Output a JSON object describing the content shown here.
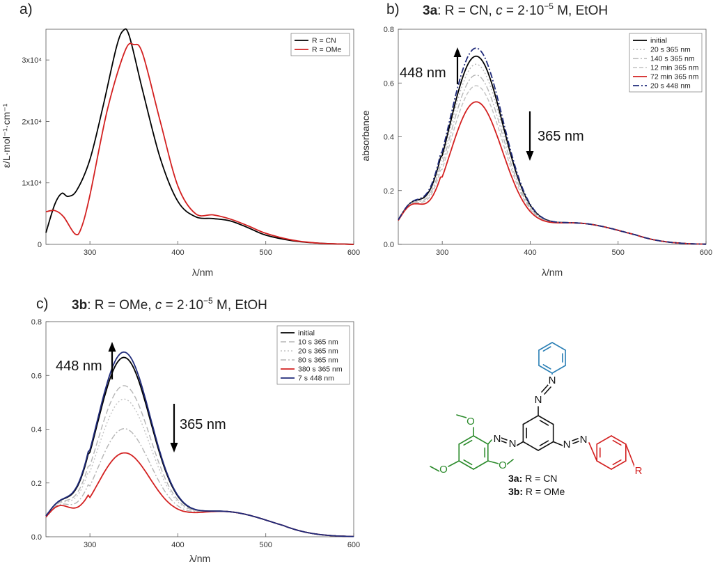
{
  "chart_data": [
    {
      "panel": "a)",
      "type": "line",
      "title": "",
      "xlabel": "λ/nm",
      "ylabel": "ε/L·mol⁻¹·cm⁻¹",
      "xlim": [
        250,
        600
      ],
      "ylim": [
        0,
        35000
      ],
      "xticks": [
        300,
        400,
        500,
        600
      ],
      "yticks": [
        0,
        10000,
        20000,
        30000
      ],
      "ytick_labels": [
        "0",
        "1x10⁴",
        "2x10⁴",
        "3x10⁴"
      ],
      "legend_position": "top-right",
      "series": [
        {
          "name": "R = CN",
          "color": "#000000",
          "dash": "",
          "x": [
            250,
            260,
            268,
            275,
            285,
            300,
            315,
            330,
            338,
            345,
            360,
            380,
            400,
            420,
            440,
            460,
            480,
            500,
            530,
            560,
            600
          ],
          "y": [
            1900,
            6500,
            8300,
            7800,
            8800,
            13800,
            22500,
            32000,
            34800,
            33800,
            25000,
            14000,
            7000,
            4500,
            4200,
            3800,
            2700,
            1500,
            600,
            200,
            0
          ]
        },
        {
          "name": "R = OMe",
          "color": "#d32020",
          "dash": "",
          "x": [
            250,
            260,
            270,
            283,
            290,
            300,
            320,
            340,
            350,
            360,
            380,
            400,
            420,
            440,
            460,
            480,
            500,
            530,
            560,
            600
          ],
          "y": [
            5300,
            5500,
            4500,
            1700,
            2600,
            8000,
            22000,
            31500,
            32500,
            31000,
            20000,
            9500,
            5000,
            4800,
            4100,
            3000,
            1800,
            700,
            200,
            0
          ]
        }
      ]
    },
    {
      "panel": "b)",
      "type": "line",
      "title_bold": "3a",
      "title_rest": ": R = CN, ",
      "title_c": "c",
      "title_conc": " = 2·10",
      "title_exp": "−5",
      "title_end": " M, EtOH",
      "xlabel": "λ/nm",
      "ylabel": "absorbance",
      "xlim": [
        250,
        600
      ],
      "ylim": [
        0,
        0.8
      ],
      "xticks": [
        300,
        400,
        500,
        600
      ],
      "yticks": [
        0,
        0.2,
        0.4,
        0.6,
        0.8
      ],
      "ytick_labels": [
        "0.0",
        "0.2",
        "0.4",
        "0.6",
        "0.8"
      ],
      "legend_position": "top-right",
      "annotations": {
        "up": "448 nm",
        "down": "365 nm"
      },
      "series": [
        {
          "name": "initial",
          "color": "#000000",
          "dash": "",
          "width": 1.8,
          "peak": 0.69
        },
        {
          "name": "20 s 365 nm",
          "color": "#b5b5b5",
          "dash": "2,3",
          "width": 1.4,
          "peak": 0.66
        },
        {
          "name": "140 s 365 nm",
          "color": "#b5b5b5",
          "dash": "8,3,2,3",
          "width": 1.4,
          "peak": 0.62
        },
        {
          "name": "12 min 365 nm",
          "color": "#c2c2c2",
          "dash": "6,3",
          "width": 1.4,
          "peak": 0.58
        },
        {
          "name": "72 min 365 nm",
          "color": "#d32020",
          "dash": "",
          "width": 1.8,
          "peak": 0.52
        },
        {
          "name": "20 s 448 nm",
          "color": "#1f2a7a",
          "dash": "9,3,2,3",
          "width": 1.8,
          "peak": 0.72
        }
      ]
    },
    {
      "panel": "c)",
      "type": "line",
      "title_bold": "3b",
      "title_rest": ": R = OMe, ",
      "title_c": "c",
      "title_conc": " = 2·10",
      "title_exp": "−5",
      "title_end": " M, EtOH",
      "xlabel": "λ/nm",
      "ylabel": "",
      "xlim": [
        250,
        600
      ],
      "ylim": [
        0,
        0.8
      ],
      "xticks": [
        300,
        400,
        500,
        600
      ],
      "yticks": [
        0,
        0.2,
        0.4,
        0.6,
        0.8
      ],
      "ytick_labels": [
        "0.0",
        "0.2",
        "0.4",
        "0.6",
        "0.8"
      ],
      "legend_position": "top-right",
      "annotations": {
        "up": "448 nm",
        "down": "365 nm"
      },
      "series": [
        {
          "name": "initial",
          "color": "#000000",
          "dash": "",
          "width": 1.8,
          "peak": 0.655
        },
        {
          "name": "10 s 365 nm",
          "color": "#b5b5b5",
          "dash": "8,4",
          "width": 1.4,
          "peak": 0.55
        },
        {
          "name": "20 s 365 nm",
          "color": "#c2c2c2",
          "dash": "2,3",
          "width": 1.4,
          "peak": 0.5
        },
        {
          "name": "80 s 365 nm",
          "color": "#b5b5b5",
          "dash": "8,3,2,3",
          "width": 1.4,
          "peak": 0.39
        },
        {
          "name": "380 s 365 nm",
          "color": "#d32020",
          "dash": "",
          "width": 1.8,
          "peak": 0.3
        },
        {
          "name": "7 s 448 nm",
          "color": "#1f2a7a",
          "dash": "",
          "width": 1.8,
          "peak": 0.675
        }
      ]
    }
  ],
  "molecule": {
    "atom_o": "O",
    "atom_n": "N",
    "atom_r": "R",
    "colors": {
      "phenyl": "#2a7fb5",
      "trimethoxy": "#2a8a2a",
      "aryl_r": "#d32020",
      "core": "#111111"
    },
    "caption": [
      {
        "bold": "3a:",
        "rest": " R = CN"
      },
      {
        "bold": "3b:",
        "rest": " R = OMe"
      }
    ]
  }
}
